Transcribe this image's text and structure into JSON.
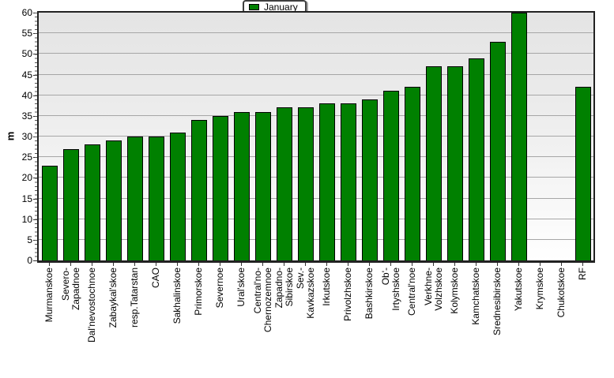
{
  "legend": {
    "label": "January"
  },
  "y_axis": {
    "title": "m",
    "min": 0,
    "max": 60,
    "step": 5
  },
  "colors": {
    "bar_fill": "#008000",
    "bar_border": "#000000",
    "gridline": "#a6a6a6",
    "frame": "#222222",
    "plot_bg_top": "#e4e4e4",
    "plot_bg_bottom": "#ffffff",
    "text": "#000000"
  },
  "chart_data": {
    "type": "bar",
    "title": "",
    "legend_position": "top-center",
    "grid": "horizontal-major",
    "xlabel": "",
    "ylabel": "m",
    "ylim": [
      0,
      60
    ],
    "ytick_step": 5,
    "x_label_rotation": -90,
    "categories": [
      "Murmanskoe",
      "Severo-\nZapadnoe",
      "Dal'nevostochnoe",
      "Zabaykal'skoe",
      "resp.Tatarstan",
      "CAO",
      "Sakhalinskoe",
      "Primorskoe",
      "Severnoe",
      "Ural'skoe",
      "Central'no-\nChernozemnoe",
      "Zapadno-\nSibirskoe",
      "Sev.-\nKavkazskoe",
      "Irkutskoe",
      "Privolzhskoe",
      "Bashkirskoe",
      "Ob'-\nIrtyshskoe",
      "Central'noe",
      "Verkhne-\nVolzhskoe",
      "Kolymskoe",
      "Kamchatskoe",
      "Srednesibirskoe",
      "Yakutskoe",
      "Krymskoe",
      "Chukotskoe",
      "RF"
    ],
    "series": [
      {
        "name": "January",
        "color": "#008000",
        "values": [
          23,
          27,
          28,
          29,
          30,
          30,
          31,
          34,
          35,
          36,
          36,
          37,
          37,
          38,
          38,
          39,
          41,
          42,
          47,
          47,
          49,
          53,
          60,
          null,
          null,
          42
        ]
      }
    ]
  }
}
